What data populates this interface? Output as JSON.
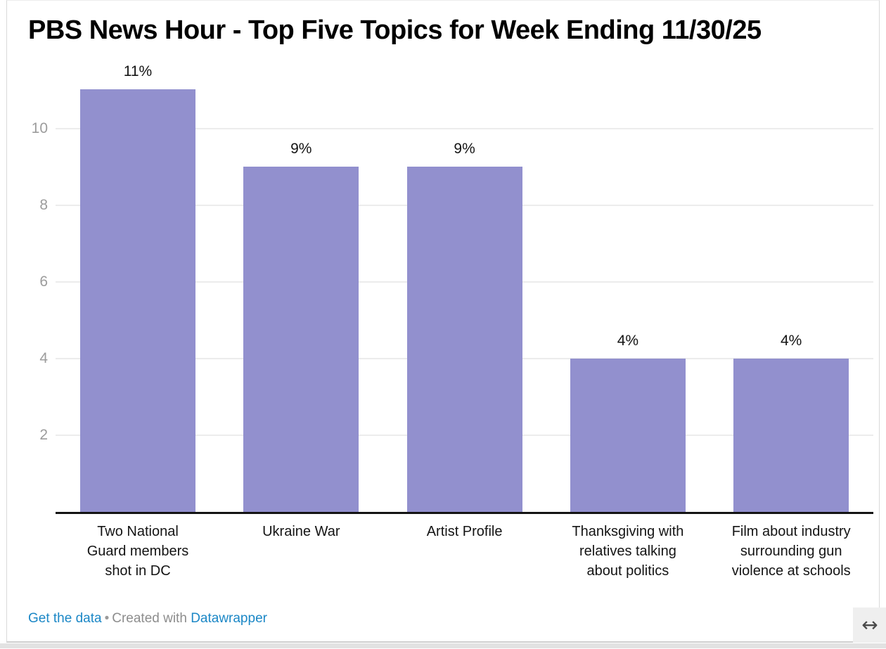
{
  "title": "PBS News Hour - Top Five Topics for Week Ending 11/30/25",
  "chart_data": {
    "type": "bar",
    "title": "PBS News Hour - Top Five Topics for Week Ending 11/30/25",
    "categories": [
      "Two National\nGuard members\nshot in DC",
      "Ukraine War",
      "Artist Profile",
      "Thanksgiving with\nrelatives talking\nabout politics",
      "Film about industry\nsurrounding gun\nviolence at schools"
    ],
    "values": [
      11,
      9,
      9,
      4,
      4
    ],
    "value_labels": [
      "11%",
      "9%",
      "9%",
      "4%",
      "4%"
    ],
    "unit": "percent",
    "xlabel": "",
    "ylabel": "",
    "yticks": [
      2,
      4,
      6,
      8,
      10
    ],
    "ylim": [
      0,
      11.5
    ],
    "grid": true,
    "legend": "none",
    "bar_color": "#9290ce",
    "axis_color": "#141414",
    "grid_color": "#ececec",
    "tick_label_color": "#9c9c9c"
  },
  "footer": {
    "get_data_label": "Get the data",
    "separator": "•",
    "credit_text": "Created with",
    "credit_link_label": "Datawrapper"
  },
  "controls": {
    "resize_glyph": "↔"
  }
}
